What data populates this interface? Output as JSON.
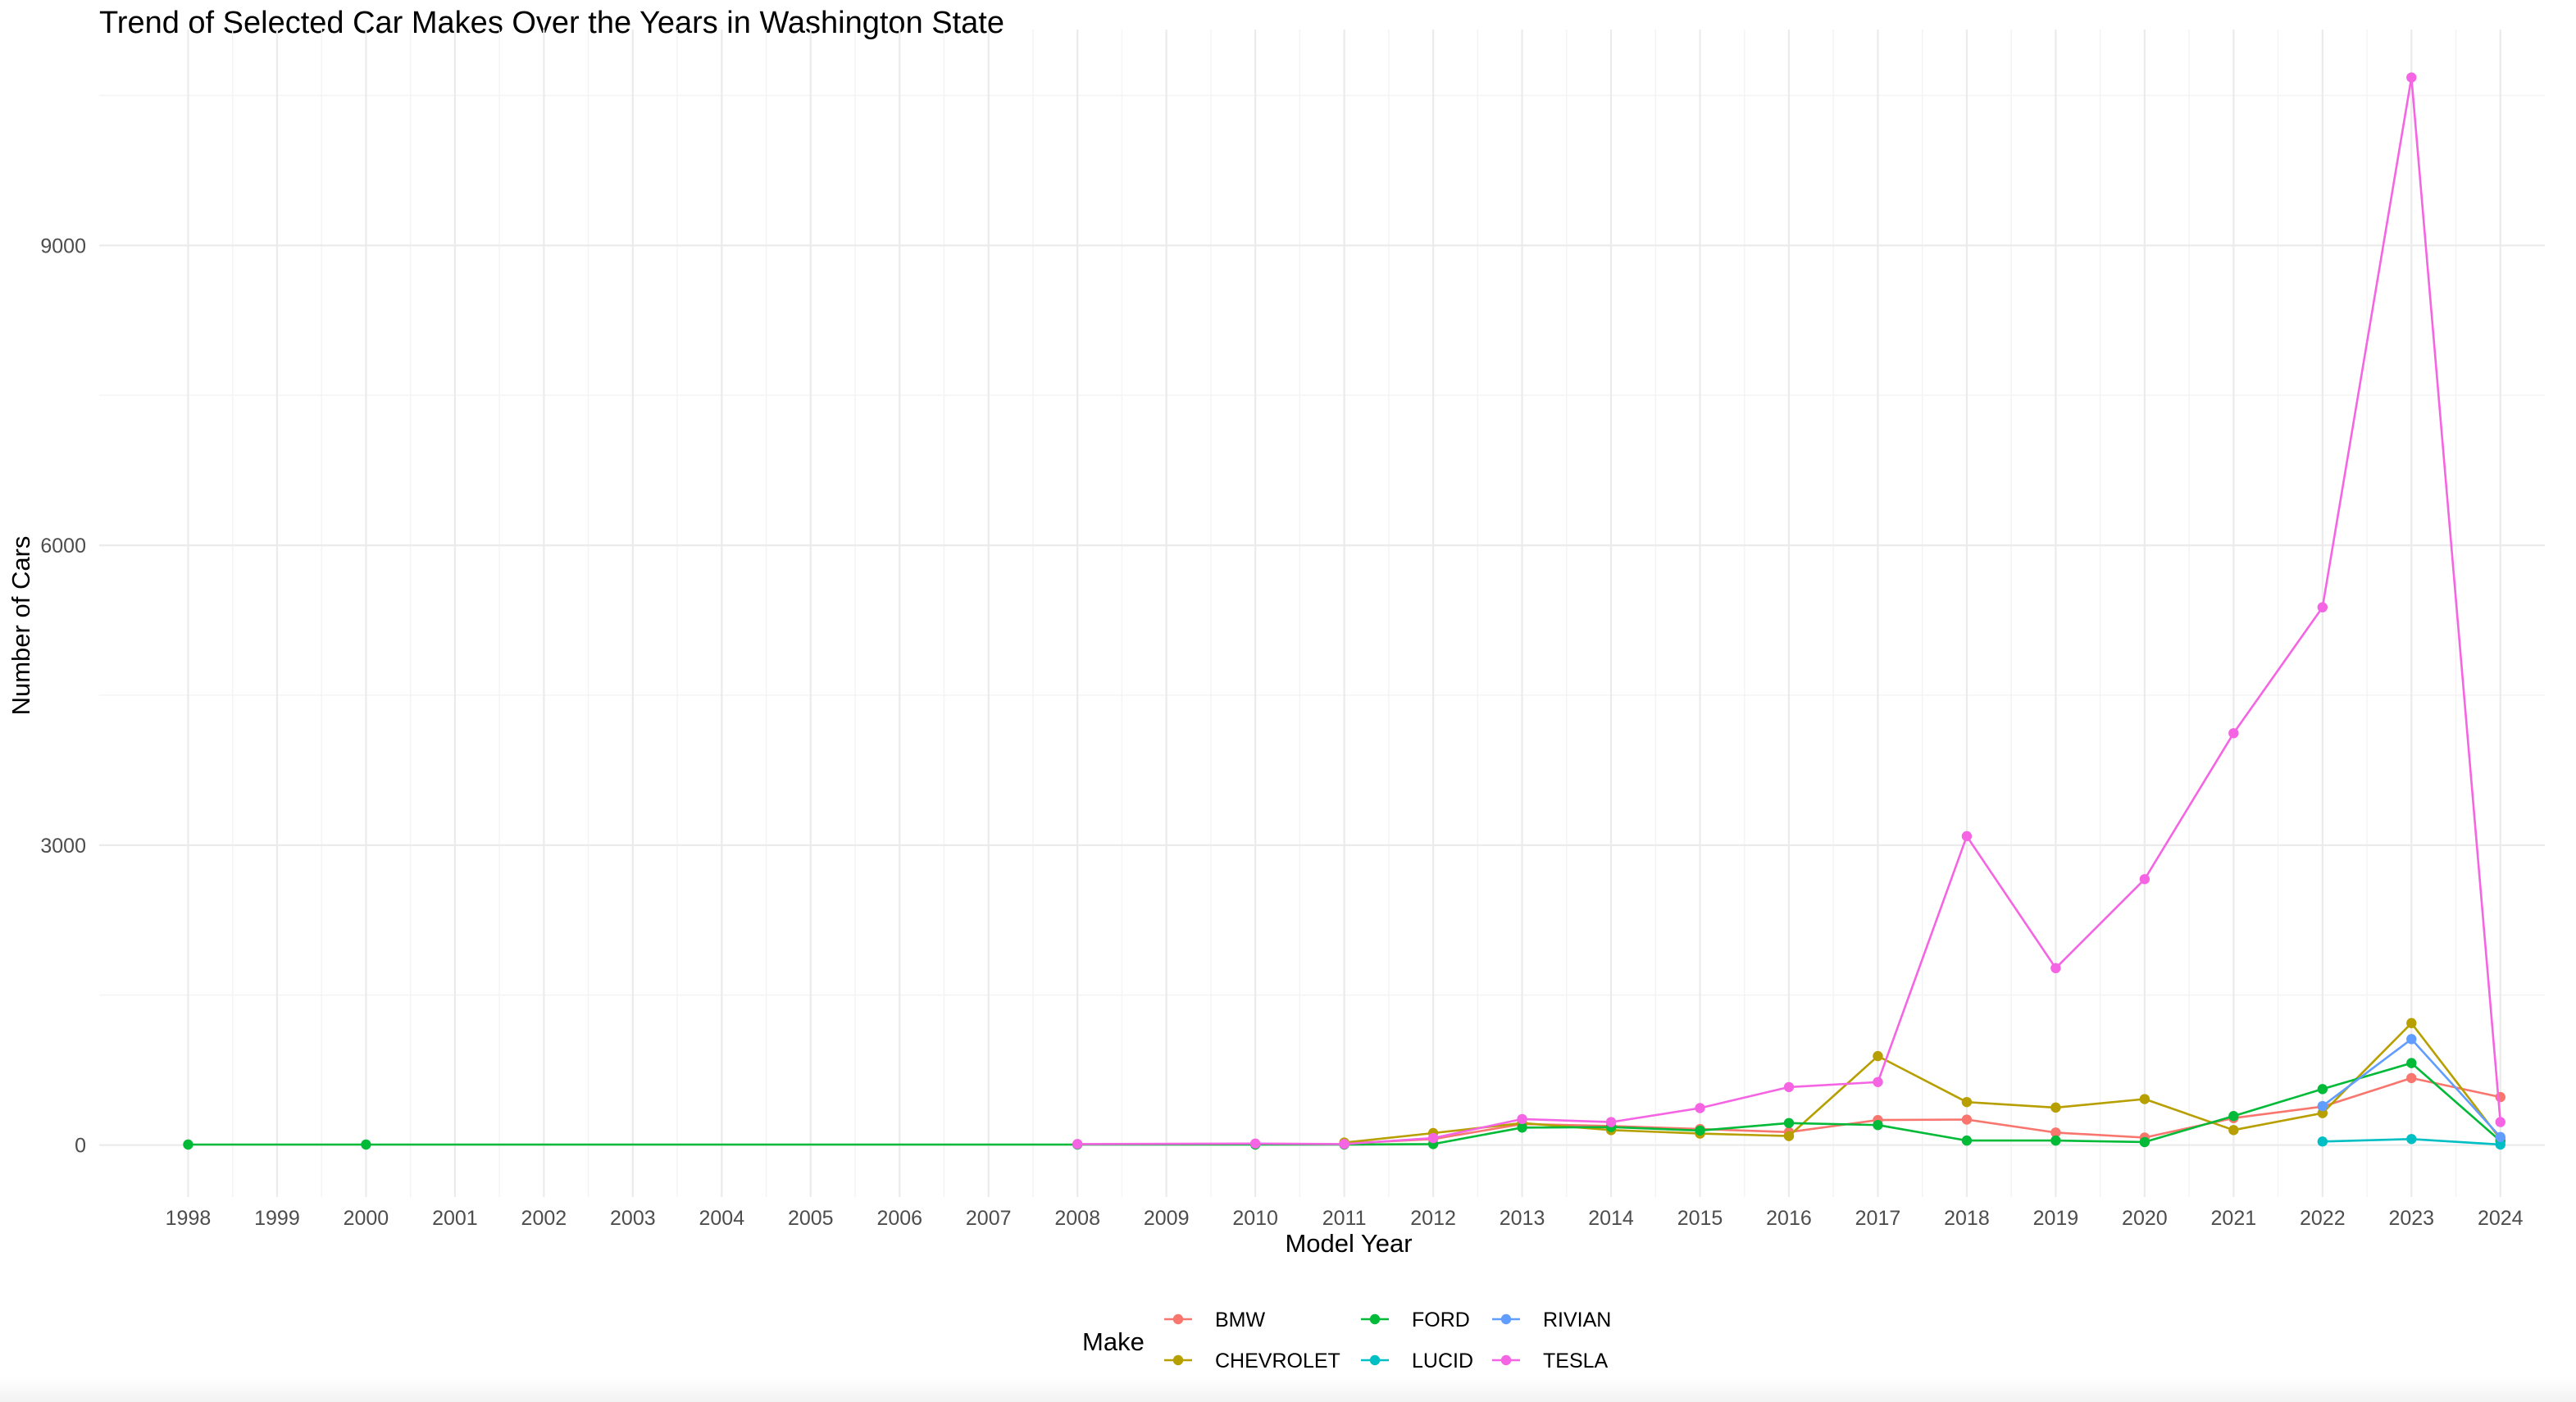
{
  "chart_data": {
    "type": "line",
    "title": "Trend of Selected Car Makes Over the Years in Washington State",
    "xlabel": "Model Year",
    "ylabel": "Number of Cars",
    "x_ticks": [
      1998,
      1999,
      2000,
      2001,
      2002,
      2003,
      2004,
      2005,
      2006,
      2007,
      2008,
      2009,
      2010,
      2011,
      2012,
      2013,
      2014,
      2015,
      2016,
      2017,
      2018,
      2019,
      2020,
      2021,
      2022,
      2023,
      2024
    ],
    "y_ticks": [
      0,
      3000,
      6000,
      9000
    ],
    "xlim": [
      1997,
      2024.5
    ],
    "ylim": [
      -520,
      11160
    ],
    "grid": true,
    "legend": {
      "title": "Make",
      "position": "bottom"
    },
    "series": [
      {
        "name": "BMW",
        "color": "#F8766D",
        "points": [
          [
            2011,
            15
          ],
          [
            2012,
            60
          ],
          [
            2013,
            210
          ],
          [
            2014,
            190
          ],
          [
            2015,
            160
          ],
          [
            2016,
            130
          ],
          [
            2017,
            250
          ],
          [
            2018,
            255
          ],
          [
            2019,
            125
          ],
          [
            2020,
            75
          ],
          [
            2021,
            270
          ],
          [
            2022,
            385
          ],
          [
            2023,
            670
          ],
          [
            2024,
            480
          ]
        ]
      },
      {
        "name": "CHEVROLET",
        "color": "#B79F00",
        "points": [
          [
            2011,
            25
          ],
          [
            2012,
            120
          ],
          [
            2013,
            220
          ],
          [
            2014,
            150
          ],
          [
            2015,
            115
          ],
          [
            2016,
            90
          ],
          [
            2017,
            890
          ],
          [
            2018,
            430
          ],
          [
            2019,
            375
          ],
          [
            2020,
            460
          ],
          [
            2021,
            150
          ],
          [
            2022,
            320
          ],
          [
            2023,
            1220
          ],
          [
            2024,
            60
          ]
        ]
      },
      {
        "name": "FORD",
        "color": "#00BA38",
        "points": [
          [
            1998,
            5
          ],
          [
            2000,
            5
          ],
          [
            2008,
            5
          ],
          [
            2010,
            5
          ],
          [
            2011,
            5
          ],
          [
            2012,
            10
          ],
          [
            2013,
            175
          ],
          [
            2014,
            180
          ],
          [
            2015,
            145
          ],
          [
            2016,
            220
          ],
          [
            2017,
            200
          ],
          [
            2018,
            45
          ],
          [
            2019,
            45
          ],
          [
            2020,
            30
          ],
          [
            2021,
            290
          ],
          [
            2022,
            560
          ],
          [
            2023,
            820
          ],
          [
            2024,
            40
          ]
        ]
      },
      {
        "name": "LUCID",
        "color": "#00BFC4",
        "points": [
          [
            2022,
            35
          ],
          [
            2023,
            60
          ],
          [
            2024,
            5
          ]
        ]
      },
      {
        "name": "RIVIAN",
        "color": "#619CFF",
        "points": [
          [
            2022,
            390
          ],
          [
            2023,
            1060
          ],
          [
            2024,
            80
          ]
        ]
      },
      {
        "name": "TESLA",
        "color": "#F564E3",
        "points": [
          [
            2008,
            10
          ],
          [
            2010,
            15
          ],
          [
            2011,
            10
          ],
          [
            2012,
            70
          ],
          [
            2013,
            260
          ],
          [
            2014,
            230
          ],
          [
            2015,
            370
          ],
          [
            2016,
            580
          ],
          [
            2017,
            630
          ],
          [
            2018,
            3090
          ],
          [
            2019,
            1770
          ],
          [
            2020,
            2660
          ],
          [
            2021,
            4120
          ],
          [
            2022,
            5380
          ],
          [
            2023,
            10680
          ],
          [
            2024,
            230
          ]
        ]
      }
    ]
  }
}
